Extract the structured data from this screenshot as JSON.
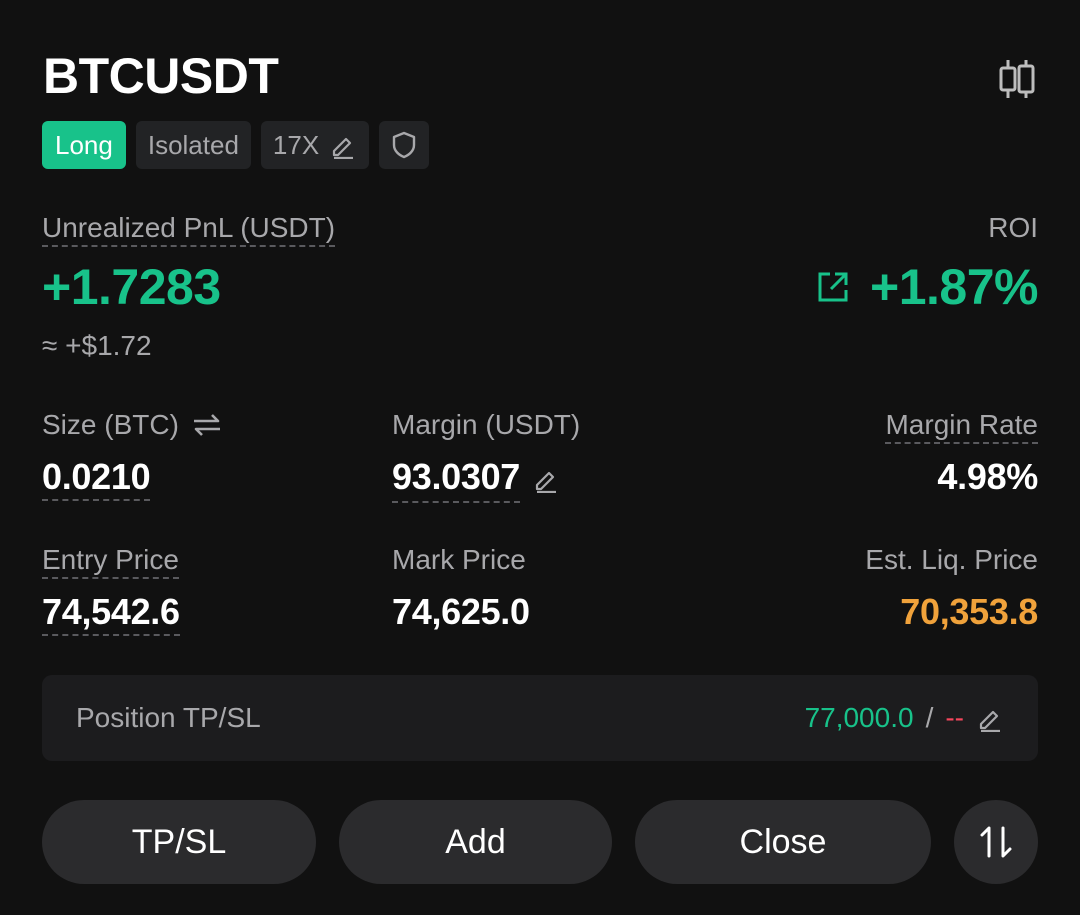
{
  "position": {
    "symbol": "BTCUSDT",
    "side": "Long",
    "margin_mode": "Isolated",
    "leverage": "17X"
  },
  "pnl": {
    "label": "Unrealized PnL (USDT)",
    "value": "+1.7283",
    "approx": "≈ +$1.72"
  },
  "roi": {
    "label": "ROI",
    "value": "+1.87%"
  },
  "stats": {
    "size_label": "Size (BTC)",
    "size_value": "0.0210",
    "margin_label": "Margin (USDT)",
    "margin_value": "93.0307",
    "margin_rate_label": "Margin Rate",
    "margin_rate_value": "4.98%",
    "entry_label": "Entry Price",
    "entry_value": "74,542.6",
    "mark_label": "Mark Price",
    "mark_value": "74,625.0",
    "liq_label": "Est. Liq. Price",
    "liq_value": "70,353.8"
  },
  "tpsl": {
    "label": "Position TP/SL",
    "tp_value": "77,000.0",
    "separator": "/",
    "sl_value": "--"
  },
  "actions": {
    "tpsl_label": "TP/SL",
    "add_label": "Add",
    "close_label": "Close"
  },
  "colors": {
    "background": "#111111",
    "profit_green": "#18c28a",
    "loss_red": "#f6465d",
    "liq_orange": "#f0a23b",
    "muted_text": "#a8a8ab"
  },
  "icons": [
    "candlestick-chart-icon",
    "edit-pencil-icon",
    "shield-icon",
    "swap-arrows-icon",
    "share-icon",
    "sort-arrows-icon"
  ]
}
